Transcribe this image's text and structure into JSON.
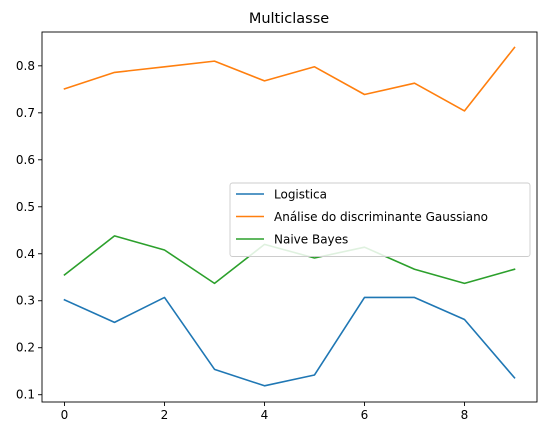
{
  "chart_data": {
    "type": "line",
    "title": "Multiclasse",
    "xlabel": "",
    "ylabel": "",
    "x": [
      0,
      1,
      2,
      3,
      4,
      5,
      6,
      7,
      8,
      9
    ],
    "xlim": [
      -0.45,
      9.45
    ],
    "ylim": [
      0.0845,
      0.872
    ],
    "xticks": [
      0,
      2,
      4,
      6,
      8
    ],
    "yticks": [
      0.1,
      0.2,
      0.3,
      0.4,
      0.5,
      0.6,
      0.7,
      0.8
    ],
    "grid": false,
    "legend_position": "center-right",
    "series": [
      {
        "name": "Logistica",
        "color": "#1f77b4",
        "values": [
          0.302,
          0.254,
          0.307,
          0.154,
          0.119,
          0.142,
          0.307,
          0.307,
          0.26,
          0.136
        ]
      },
      {
        "name": "Análise do discriminante Gaussiano",
        "color": "#ff7f0e",
        "values": [
          0.751,
          0.786,
          0.798,
          0.81,
          0.768,
          0.798,
          0.739,
          0.763,
          0.704,
          0.839
        ]
      },
      {
        "name": "Naive Bayes",
        "color": "#2ca02c",
        "values": [
          0.355,
          0.438,
          0.408,
          0.337,
          0.42,
          0.391,
          0.414,
          0.367,
          0.337,
          0.367
        ]
      }
    ]
  }
}
